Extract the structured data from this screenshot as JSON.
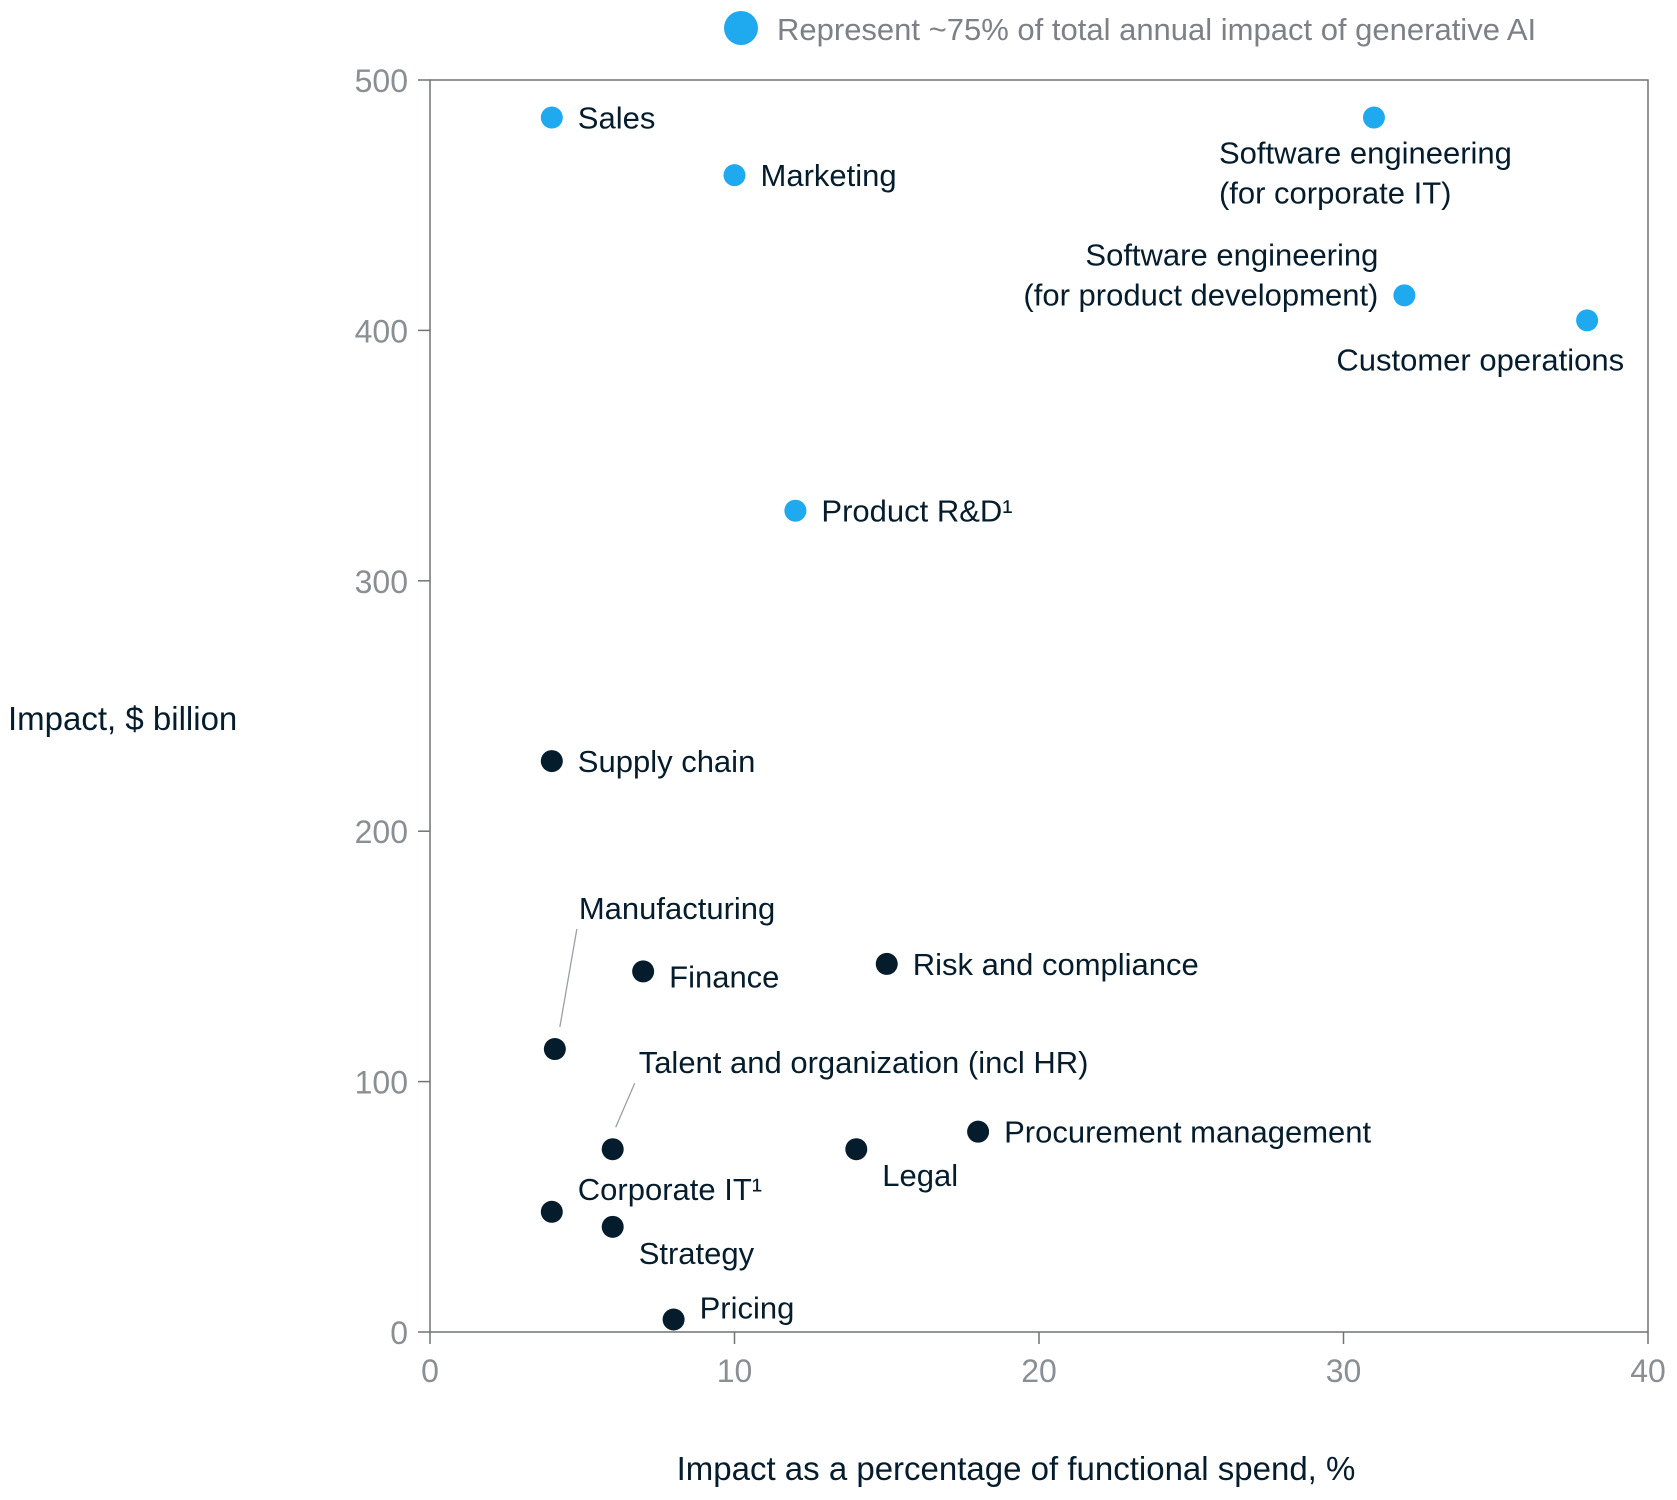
{
  "chart_data": {
    "type": "scatter",
    "title": "",
    "xlabel": "Impact as a percentage of functional spend, %",
    "ylabel": "Impact, $ billion",
    "xlim": [
      0,
      40
    ],
    "ylim": [
      0,
      500
    ],
    "xticks": [
      0,
      10,
      20,
      30,
      40
    ],
    "yticks": [
      0,
      100,
      200,
      300,
      400,
      500
    ],
    "grid": false,
    "legend": {
      "position": "top-right",
      "entries": [
        {
          "label": "Represent ~75% of total annual impact of generative AI",
          "color": "#1fa9ee"
        }
      ]
    },
    "colors": {
      "highlight": "#1fa9ee",
      "default": "#051c2c",
      "axis": "#6f7377",
      "leader": "#9aa0a6"
    },
    "series": [
      {
        "name": "Represent ~75% of total annual impact of generative AI",
        "color": "#1fa9ee",
        "points": [
          {
            "label": "Sales",
            "x": 4,
            "y": 485
          },
          {
            "label": "Marketing",
            "x": 10,
            "y": 462
          },
          {
            "label": "Software engineering\n(for corporate IT)",
            "x": 31,
            "y": 485
          },
          {
            "label": "Software engineering\n(for product development)",
            "x": 32,
            "y": 414
          },
          {
            "label": "Customer operations",
            "x": 38,
            "y": 404
          },
          {
            "label": "Product R&D¹",
            "x": 12,
            "y": 328
          }
        ]
      },
      {
        "color": "#051c2c",
        "points": [
          {
            "label": "Supply chain",
            "x": 4,
            "y": 228
          },
          {
            "label": "Manufacturing",
            "x": 4.1,
            "y": 113
          },
          {
            "label": "Finance",
            "x": 7,
            "y": 144
          },
          {
            "label": "Risk and compliance",
            "x": 15,
            "y": 147
          },
          {
            "label": "Talent and organization (incl HR)",
            "x": 6,
            "y": 73
          },
          {
            "label": "Procurement management",
            "x": 18,
            "y": 80
          },
          {
            "label": "Legal",
            "x": 14,
            "y": 73
          },
          {
            "label": "Corporate IT¹",
            "x": 4,
            "y": 48
          },
          {
            "label": "Strategy",
            "x": 6,
            "y": 42
          },
          {
            "label": "Pricing",
            "x": 8,
            "y": 5
          }
        ]
      }
    ]
  }
}
